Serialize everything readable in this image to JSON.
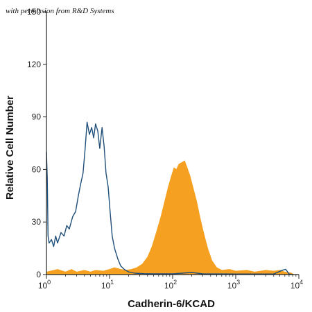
{
  "watermark": "with permission from R&D Systems",
  "chart_data": {
    "type": "histogram",
    "xlabel": "Cadherin-6/KCAD",
    "ylabel": "Relative Cell Number",
    "x_scale": "log",
    "xlim": [
      1,
      10000
    ],
    "ylim": [
      0,
      150
    ],
    "x_ticks": [
      {
        "value": 1,
        "base": "10",
        "exp": "0"
      },
      {
        "value": 10,
        "base": "10",
        "exp": "1"
      },
      {
        "value": 100,
        "base": "10",
        "exp": "2"
      },
      {
        "value": 1000,
        "base": "10",
        "exp": "3"
      },
      {
        "value": 10000,
        "base": "10",
        "exp": "4"
      }
    ],
    "y_ticks": [
      "0",
      "30",
      "60",
      "90",
      "120",
      "150"
    ],
    "series": [
      {
        "color": "#1f4e79",
        "style": "outline",
        "points": [
          [
            1.0,
            70
          ],
          [
            1.03,
            55
          ],
          [
            1.06,
            22
          ],
          [
            1.1,
            18
          ],
          [
            1.2,
            20
          ],
          [
            1.3,
            16
          ],
          [
            1.4,
            22
          ],
          [
            1.5,
            18
          ],
          [
            1.7,
            24
          ],
          [
            1.9,
            22
          ],
          [
            2.1,
            28
          ],
          [
            2.3,
            26
          ],
          [
            2.6,
            33
          ],
          [
            2.9,
            36
          ],
          [
            3.2,
            45
          ],
          [
            3.5,
            52
          ],
          [
            3.8,
            58
          ],
          [
            4.1,
            72
          ],
          [
            4.4,
            87
          ],
          [
            4.8,
            80
          ],
          [
            5.2,
            84
          ],
          [
            5.6,
            78
          ],
          [
            6.0,
            86
          ],
          [
            6.5,
            82
          ],
          [
            7.0,
            72
          ],
          [
            7.6,
            84
          ],
          [
            8.2,
            73
          ],
          [
            8.8,
            58
          ],
          [
            9.5,
            50
          ],
          [
            10.2,
            36
          ],
          [
            11.0,
            22
          ],
          [
            12.0,
            15
          ],
          [
            13.5,
            9
          ],
          [
            15.0,
            5
          ],
          [
            17.0,
            3
          ],
          [
            20.0,
            1.5
          ],
          [
            25.0,
            0.8
          ],
          [
            35.0,
            0.5
          ],
          [
            50.0,
            0.4
          ],
          [
            100.0,
            0.4
          ],
          [
            200.0,
            1.2
          ],
          [
            300.0,
            0.4
          ],
          [
            1000.0,
            0.3
          ],
          [
            4000.0,
            0.3
          ],
          [
            5500.0,
            2.5
          ],
          [
            6200.0,
            3
          ],
          [
            7000.0,
            0.3
          ],
          [
            8000.0,
            0
          ]
        ]
      },
      {
        "color": "#f5a020",
        "style": "filled",
        "points": [
          [
            1.0,
            1.5
          ],
          [
            1.5,
            3
          ],
          [
            2.0,
            1.5
          ],
          [
            2.5,
            3
          ],
          [
            3.0,
            1.5
          ],
          [
            4.0,
            2.5
          ],
          [
            5.0,
            1.5
          ],
          [
            6.0,
            2.5
          ],
          [
            8.0,
            2
          ],
          [
            10.0,
            3
          ],
          [
            12.0,
            4
          ],
          [
            15.0,
            3
          ],
          [
            18.0,
            2.5
          ],
          [
            22.0,
            3
          ],
          [
            27.0,
            4
          ],
          [
            33.0,
            6
          ],
          [
            40.0,
            10
          ],
          [
            47.0,
            16
          ],
          [
            55.0,
            24
          ],
          [
            65.0,
            33
          ],
          [
            75.0,
            42
          ],
          [
            85.0,
            50
          ],
          [
            95.0,
            56
          ],
          [
            105.0,
            61
          ],
          [
            115.0,
            60
          ],
          [
            125.0,
            63
          ],
          [
            140.0,
            64
          ],
          [
            155.0,
            65
          ],
          [
            170.0,
            61
          ],
          [
            190.0,
            56
          ],
          [
            210.0,
            50
          ],
          [
            240.0,
            42
          ],
          [
            270.0,
            33
          ],
          [
            310.0,
            24
          ],
          [
            360.0,
            15
          ],
          [
            420.0,
            8
          ],
          [
            500.0,
            4
          ],
          [
            600.0,
            2.5
          ],
          [
            800.0,
            3
          ],
          [
            1000.0,
            2
          ],
          [
            1500.0,
            2.5
          ],
          [
            2000.0,
            1.5
          ],
          [
            3000.0,
            2.5
          ],
          [
            4000.0,
            2
          ],
          [
            5000.0,
            2.5
          ],
          [
            6000.0,
            1.5
          ],
          [
            7500.0,
            1
          ],
          [
            8500.0,
            0
          ]
        ]
      }
    ]
  }
}
